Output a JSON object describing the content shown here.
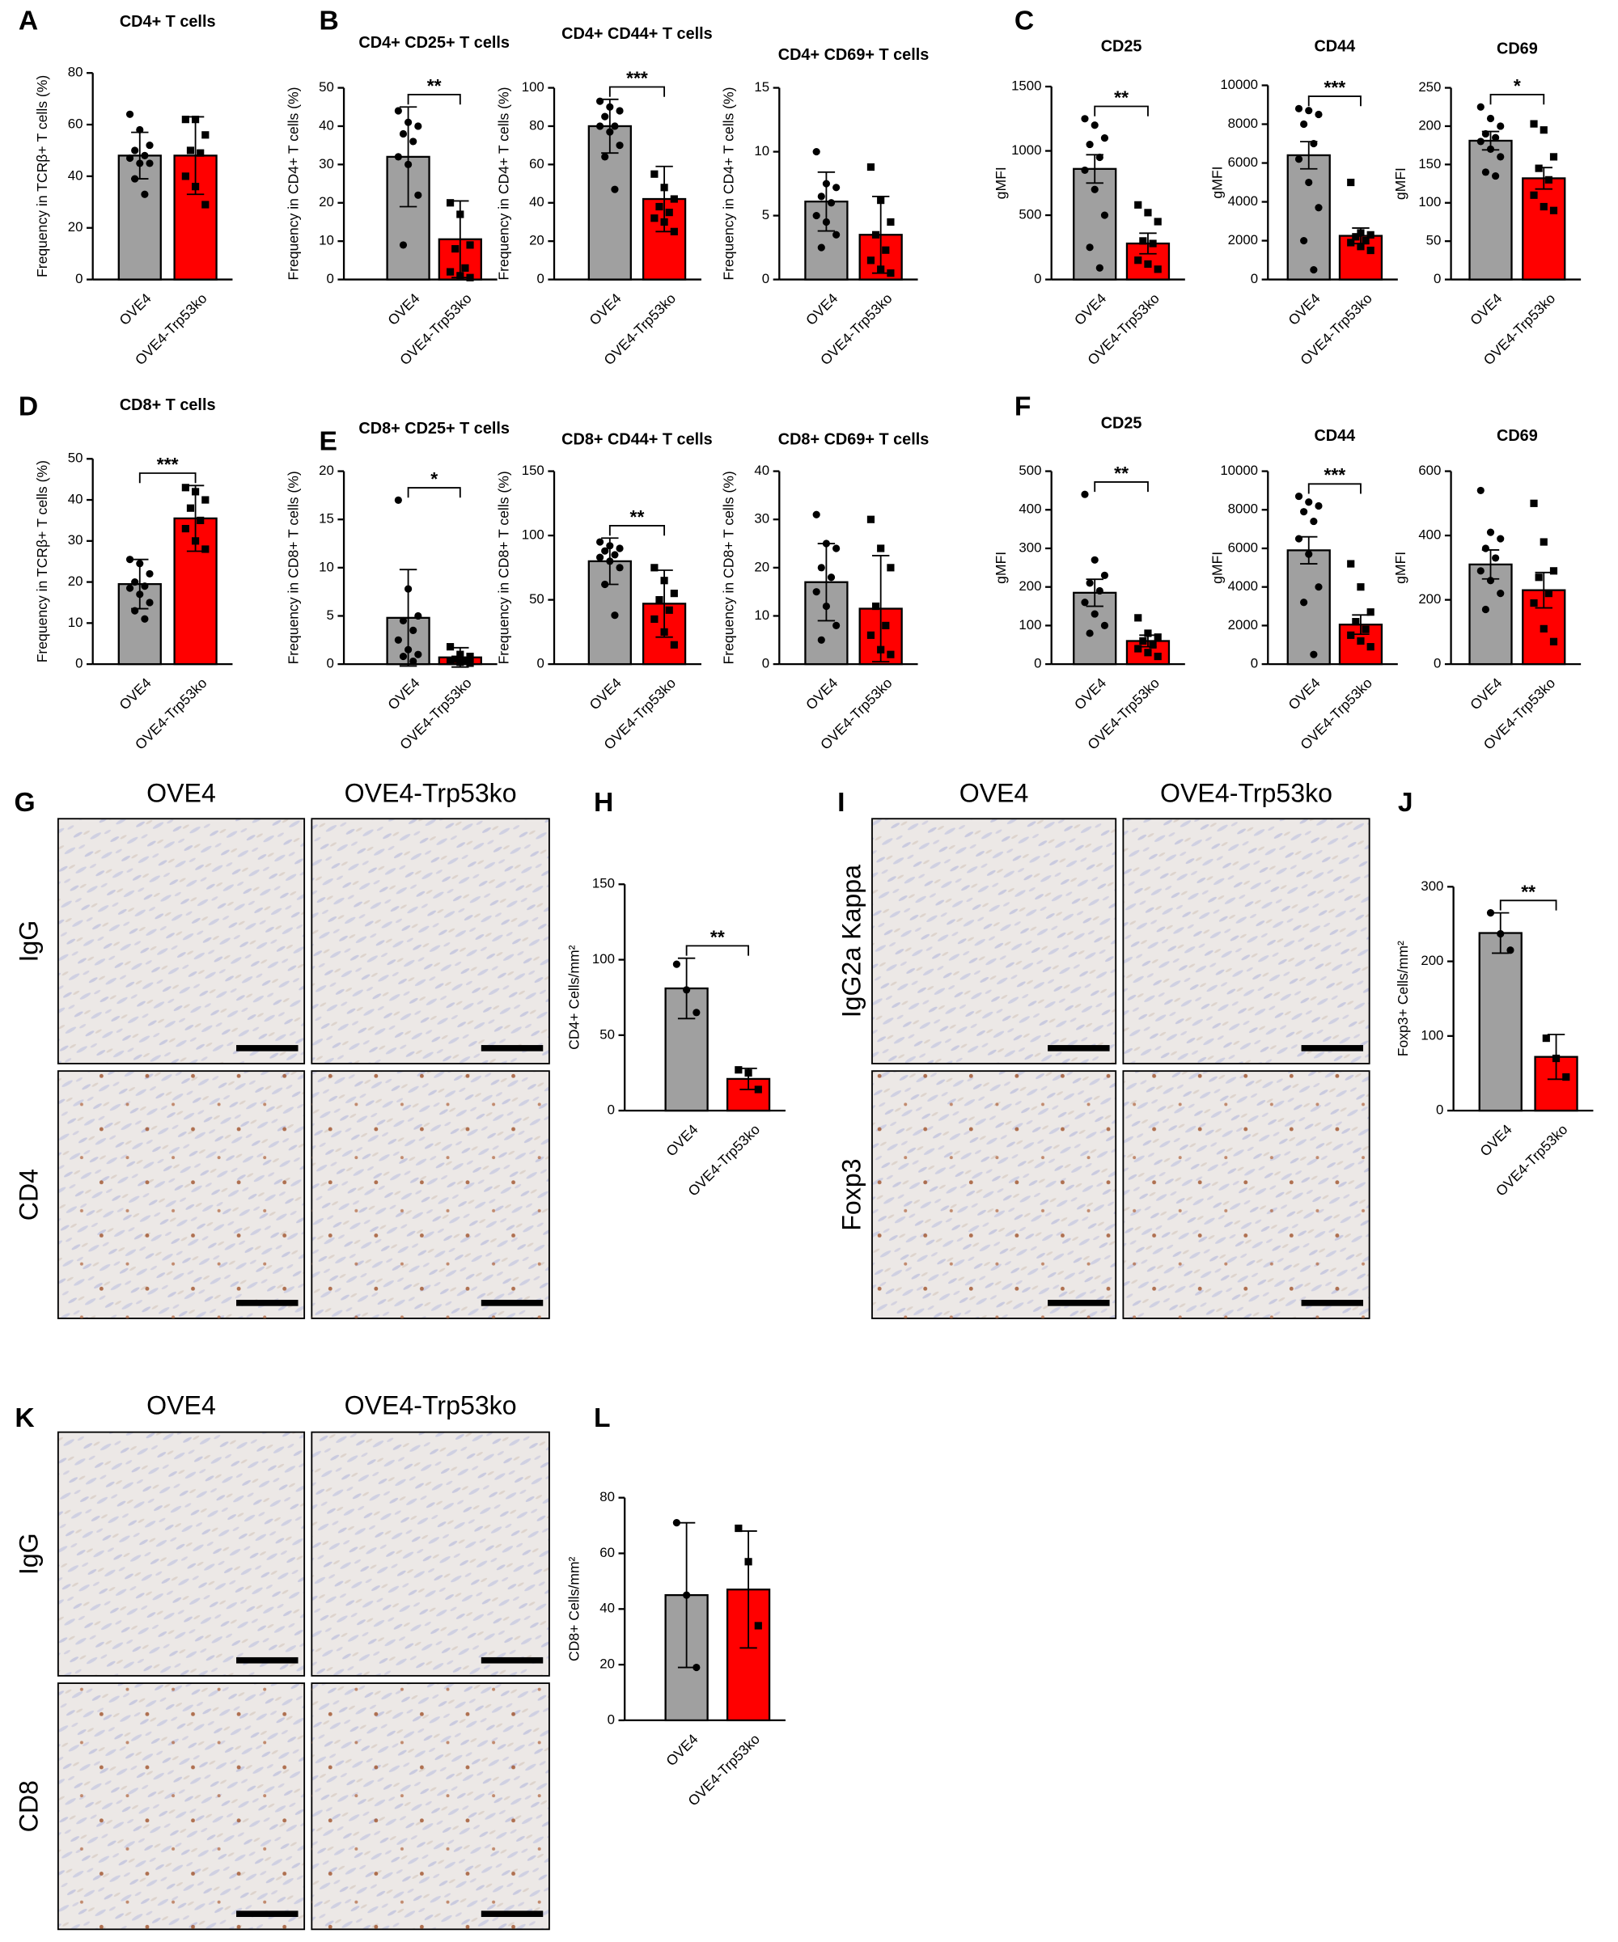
{
  "chart_data": [
    {
      "type": "bar",
      "panel": "A",
      "title": "CD4+ T cells",
      "ylabel": "Frequency in TCRβ+ T cells (%)",
      "categories": [
        "OVE4",
        "OVE4-Trp53ko"
      ],
      "values": [
        48,
        48
      ],
      "errors": [
        9,
        15
      ],
      "points": [
        [
          64,
          58,
          52,
          50,
          48,
          47,
          45,
          45,
          39,
          33
        ],
        [
          62,
          62,
          56,
          50,
          49,
          40,
          36,
          29
        ]
      ],
      "colors": [
        "#a0a0a0",
        "#ff0000"
      ],
      "ylim": [
        0,
        80
      ],
      "yticks": [
        0,
        20,
        40,
        60,
        80
      ]
    },
    {
      "type": "bar",
      "panel": "B",
      "title": "CD4+ CD25+ T cells",
      "ylabel": "Frequency in CD4+ T cells (%)",
      "categories": [
        "OVE4",
        "OVE4-Trp53ko"
      ],
      "values": [
        32,
        10.5
      ],
      "errors": [
        13,
        10
      ],
      "points": [
        [
          44,
          41,
          40,
          38,
          36,
          32,
          30,
          22,
          9
        ],
        [
          20,
          17,
          9,
          8,
          3,
          2,
          1,
          0.5
        ]
      ],
      "colors": [
        "#a0a0a0",
        "#ff0000"
      ],
      "ylim": [
        0,
        50
      ],
      "yticks": [
        0,
        10,
        20,
        30,
        40,
        50
      ],
      "significance": "**"
    },
    {
      "type": "bar",
      "title": "CD4+ CD44+ T cells",
      "ylabel": "Frequency in CD4+ T cells (%)",
      "categories": [
        "OVE4",
        "OVE4-Trp53ko"
      ],
      "values": [
        80,
        42
      ],
      "errors": [
        14,
        17
      ],
      "points": [
        [
          93,
          90,
          88,
          85,
          80,
          80,
          77,
          70,
          64,
          47
        ],
        [
          55,
          48,
          42,
          38,
          35,
          32,
          30,
          25
        ]
      ],
      "colors": [
        "#a0a0a0",
        "#ff0000"
      ],
      "ylim": [
        0,
        100
      ],
      "yticks": [
        0,
        20,
        40,
        60,
        80,
        100
      ],
      "significance": "***"
    },
    {
      "type": "bar",
      "title": "CD4+ CD69+ T cells",
      "ylabel": "Frequency in CD4+ T cells (%)",
      "categories": [
        "OVE4",
        "OVE4-Trp53ko"
      ],
      "values": [
        6.1,
        3.5
      ],
      "errors": [
        2.3,
        3
      ],
      "points": [
        [
          10,
          7.5,
          7.2,
          6.5,
          6,
          5,
          4.5,
          3.5,
          2.5
        ],
        [
          8.8,
          6.2,
          4.5,
          3.5,
          2.3,
          1.5,
          0.8,
          0.5
        ]
      ],
      "colors": [
        "#a0a0a0",
        "#ff0000"
      ],
      "ylim": [
        0,
        15
      ],
      "yticks": [
        0,
        5,
        10,
        15
      ]
    },
    {
      "type": "bar",
      "panel": "C",
      "title": "CD25",
      "ylabel": "gMFI",
      "categories": [
        "OVE4",
        "OVE4-Trp53ko"
      ],
      "values": [
        860,
        280
      ],
      "errors": [
        110,
        80
      ],
      "points": [
        [
          1250,
          1200,
          1100,
          1050,
          950,
          850,
          700,
          500,
          250,
          90
        ],
        [
          580,
          520,
          450,
          300,
          280,
          150,
          120,
          80
        ]
      ],
      "colors": [
        "#a0a0a0",
        "#ff0000"
      ],
      "ylim": [
        0,
        1500
      ],
      "yticks": [
        0,
        500,
        1000,
        1500
      ],
      "significance": "**"
    },
    {
      "type": "bar",
      "title": "CD44",
      "ylabel": "gMFI",
      "categories": [
        "OVE4",
        "OVE4-Trp53ko"
      ],
      "values": [
        6400,
        2250
      ],
      "errors": [
        700,
        400
      ],
      "points": [
        [
          8800,
          8700,
          8500,
          8000,
          7000,
          6200,
          5000,
          3700,
          2000,
          500
        ],
        [
          5000,
          2400,
          2300,
          2200,
          2000,
          1900,
          1700,
          1500
        ]
      ],
      "colors": [
        "#a0a0a0",
        "#ff0000"
      ],
      "ylim": [
        0,
        10000
      ],
      "yticks": [
        0,
        2000,
        4000,
        6000,
        8000,
        10000
      ],
      "significance": "***"
    },
    {
      "type": "bar",
      "title": "CD69",
      "ylabel": "gMFI",
      "categories": [
        "OVE4",
        "OVE4-Trp53ko"
      ],
      "values": [
        181,
        132
      ],
      "errors": [
        12,
        14
      ],
      "points": [
        [
          225,
          210,
          200,
          190,
          185,
          180,
          170,
          160,
          140,
          135
        ],
        [
          203,
          195,
          160,
          145,
          130,
          110,
          95,
          90
        ]
      ],
      "colors": [
        "#a0a0a0",
        "#ff0000"
      ],
      "ylim": [
        0,
        250
      ],
      "yticks": [
        0,
        50,
        100,
        150,
        200,
        250
      ],
      "significance": "*"
    },
    {
      "type": "bar",
      "panel": "D",
      "title": "CD8+ T cells",
      "ylabel": "Frequency in TCRβ+ T cells (%)",
      "categories": [
        "OVE4",
        "OVE4-Trp53ko"
      ],
      "values": [
        19.5,
        35.5
      ],
      "errors": [
        6,
        8
      ],
      "points": [
        [
          25.5,
          24.5,
          22,
          20,
          19,
          18.5,
          17,
          15,
          13,
          11
        ],
        [
          43,
          42,
          40,
          38,
          35,
          33,
          30,
          28
        ]
      ],
      "colors": [
        "#a0a0a0",
        "#ff0000"
      ],
      "ylim": [
        0,
        50
      ],
      "yticks": [
        0,
        10,
        20,
        30,
        40,
        50
      ],
      "significance": "***"
    },
    {
      "type": "bar",
      "panel": "E",
      "title": "CD8+ CD25+ T cells",
      "ylabel": "Frequency in CD8+ T cells (%)",
      "categories": [
        "OVE4",
        "OVE4-Trp53ko"
      ],
      "values": [
        4.8,
        0.7
      ],
      "errors": [
        5,
        1
      ],
      "points": [
        [
          17,
          7.8,
          5,
          4.5,
          3.5,
          2.5,
          1.5,
          1,
          0.8,
          0.3
        ],
        [
          1.8,
          1,
          0.8,
          0.5,
          0.4,
          0.3,
          0.2,
          0.1
        ]
      ],
      "colors": [
        "#a0a0a0",
        "#ff0000"
      ],
      "ylim": [
        0,
        20
      ],
      "yticks": [
        0,
        5,
        10,
        15,
        20
      ],
      "significance": "*"
    },
    {
      "type": "bar",
      "title": "CD8+ CD44+ T cells",
      "ylabel": "Frequency in CD8+ T cells (%)",
      "categories": [
        "OVE4",
        "OVE4-Trp53ko"
      ],
      "values": [
        80,
        47
      ],
      "errors": [
        18,
        26
      ],
      "points": [
        [
          95,
          92,
          90,
          88,
          85,
          83,
          80,
          75,
          62,
          38
        ],
        [
          75,
          65,
          55,
          50,
          42,
          35,
          25,
          15
        ]
      ],
      "colors": [
        "#a0a0a0",
        "#ff0000"
      ],
      "ylim": [
        0,
        150
      ],
      "yticks": [
        0,
        50,
        100,
        150
      ],
      "significance": "**"
    },
    {
      "type": "bar",
      "title": "CD8+ CD69+ T cells",
      "ylabel": "Frequency in CD8+ T cells (%)",
      "categories": [
        "OVE4",
        "OVE4-Trp53ko"
      ],
      "values": [
        17,
        11.5
      ],
      "errors": [
        8,
        11
      ],
      "points": [
        [
          31,
          25,
          24,
          20,
          18,
          15,
          12,
          8,
          5
        ],
        [
          30,
          24,
          20,
          12,
          8,
          6,
          3,
          2
        ]
      ],
      "colors": [
        "#a0a0a0",
        "#ff0000"
      ],
      "ylim": [
        0,
        40
      ],
      "yticks": [
        0,
        10,
        20,
        30,
        40
      ]
    },
    {
      "type": "bar",
      "panel": "F",
      "title": "CD25",
      "ylabel": "gMFI",
      "categories": [
        "OVE4",
        "OVE4-Trp53ko"
      ],
      "values": [
        185,
        60
      ],
      "errors": [
        35,
        15
      ],
      "points": [
        [
          440,
          270,
          230,
          210,
          190,
          160,
          130,
          100,
          80
        ],
        [
          120,
          80,
          70,
          60,
          50,
          40,
          30,
          20
        ]
      ],
      "colors": [
        "#a0a0a0",
        "#ff0000"
      ],
      "ylim": [
        0,
        500
      ],
      "yticks": [
        0,
        100,
        200,
        300,
        400,
        500
      ],
      "significance": "**"
    },
    {
      "type": "bar",
      "title": "CD44",
      "ylabel": "gMFI",
      "categories": [
        "OVE4",
        "OVE4-Trp53ko"
      ],
      "values": [
        5900,
        2050
      ],
      "errors": [
        700,
        500
      ],
      "points": [
        [
          8700,
          8400,
          8200,
          7900,
          7400,
          6500,
          5700,
          4000,
          3200,
          500
        ],
        [
          5200,
          4000,
          2700,
          2200,
          1800,
          1500,
          1200,
          900
        ]
      ],
      "colors": [
        "#a0a0a0",
        "#ff0000"
      ],
      "ylim": [
        0,
        10000
      ],
      "yticks": [
        0,
        2000,
        4000,
        6000,
        8000,
        10000
      ],
      "significance": "***"
    },
    {
      "type": "bar",
      "title": "CD69",
      "ylabel": "gMFI",
      "categories": [
        "OVE4",
        "OVE4-Trp53ko"
      ],
      "values": [
        310,
        230
      ],
      "errors": [
        45,
        55
      ],
      "points": [
        [
          540,
          410,
          390,
          360,
          330,
          290,
          260,
          220,
          170
        ],
        [
          500,
          380,
          290,
          270,
          220,
          190,
          110,
          70
        ]
      ],
      "colors": [
        "#a0a0a0",
        "#ff0000"
      ],
      "ylim": [
        0,
        600
      ],
      "yticks": [
        0,
        200,
        400,
        600
      ]
    },
    {
      "type": "bar",
      "panel": "H",
      "ylabel": "CD4+ Cells/mm²",
      "categories": [
        "OVE4",
        "OVE4-Trp53ko"
      ],
      "values": [
        81,
        21
      ],
      "errors": [
        20,
        7
      ],
      "points": [
        [
          97,
          80,
          65
        ],
        [
          27,
          25,
          14
        ]
      ],
      "colors": [
        "#a0a0a0",
        "#ff0000"
      ],
      "ylim": [
        0,
        150
      ],
      "yticks": [
        0,
        50,
        100,
        150
      ],
      "significance": "**"
    },
    {
      "type": "bar",
      "panel": "J",
      "ylabel": "Foxp3+ Cells/mm²",
      "categories": [
        "OVE4",
        "OVE4-Trp53ko"
      ],
      "values": [
        238,
        72
      ],
      "errors": [
        27,
        30
      ],
      "points": [
        [
          265,
          237,
          215
        ],
        [
          97,
          70,
          45
        ]
      ],
      "colors": [
        "#a0a0a0",
        "#ff0000"
      ],
      "ylim": [
        0,
        300
      ],
      "yticks": [
        0,
        100,
        200,
        300
      ],
      "significance": "**"
    },
    {
      "type": "bar",
      "panel": "L",
      "ylabel": "CD8+ Cells/mm²",
      "categories": [
        "OVE4",
        "OVE4-Trp53ko"
      ],
      "values": [
        45,
        47
      ],
      "errors": [
        26,
        21
      ],
      "points": [
        [
          71,
          45,
          19
        ],
        [
          69,
          57,
          34
        ]
      ],
      "colors": [
        "#a0a0a0",
        "#ff0000"
      ],
      "ylim": [
        0,
        80
      ],
      "yticks": [
        0,
        20,
        40,
        60,
        80
      ]
    }
  ],
  "micrographs": [
    {
      "panel": "G",
      "columns": [
        "OVE4",
        "OVE4-Trp53ko"
      ],
      "rows": [
        "IgG",
        "CD4"
      ]
    },
    {
      "panel": "I",
      "columns": [
        "OVE4",
        "OVE4-Trp53ko"
      ],
      "rows": [
        "IgG2a Kappa",
        "Foxp3"
      ]
    },
    {
      "panel": "K",
      "columns": [
        "OVE4",
        "OVE4-Trp53ko"
      ],
      "rows": [
        "IgG",
        "CD8"
      ]
    }
  ]
}
